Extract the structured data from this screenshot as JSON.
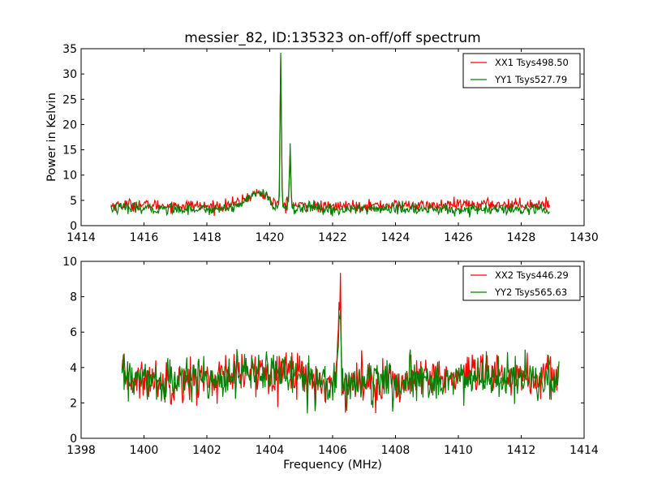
{
  "chart_data": [
    {
      "type": "line",
      "title": "messier_82, ID:135323 on-off/off spectrum",
      "xlabel": "",
      "ylabel": "Power in Kelvin",
      "xlim": [
        1414,
        1430
      ],
      "ylim": [
        0,
        35
      ],
      "xticks": [
        1414,
        1416,
        1418,
        1420,
        1422,
        1424,
        1426,
        1428,
        1430
      ],
      "yticks": [
        0,
        5,
        10,
        15,
        20,
        25,
        30,
        35
      ],
      "legend_position": "top-right",
      "grid": false,
      "series": [
        {
          "name": "XX1 Tsys498.50",
          "color": "#ff0000",
          "x": [
            1414.95,
            1415.5,
            1416.0,
            1416.5,
            1417.0,
            1417.5,
            1418.0,
            1418.5,
            1419.0,
            1419.3,
            1419.6,
            1419.9,
            1420.1,
            1420.3,
            1420.35,
            1420.4,
            1420.5,
            1420.6,
            1420.65,
            1420.7,
            1420.9,
            1421.2,
            1421.6,
            1422.0,
            1422.5,
            1423.0,
            1423.5,
            1424.0,
            1424.5,
            1425.0,
            1425.5,
            1426.0,
            1426.5,
            1427.0,
            1427.5,
            1428.0,
            1428.5,
            1428.9
          ],
          "y": [
            4.0,
            4.2,
            4.1,
            4.0,
            3.9,
            4.1,
            3.8,
            3.9,
            4.6,
            5.6,
            6.5,
            5.8,
            4.6,
            4.5,
            33.0,
            4.3,
            4.0,
            5.5,
            14.5,
            4.0,
            4.0,
            4.0,
            3.7,
            3.8,
            3.9,
            4.0,
            4.0,
            4.1,
            4.0,
            3.9,
            4.0,
            4.1,
            4.2,
            4.3,
            4.2,
            4.3,
            4.2,
            4.2
          ]
        },
        {
          "name": "YY1 Tsys527.79",
          "color": "#008000",
          "x": [
            1414.95,
            1415.5,
            1416.0,
            1416.5,
            1417.0,
            1417.5,
            1418.0,
            1418.5,
            1419.0,
            1419.3,
            1419.6,
            1419.9,
            1420.1,
            1420.3,
            1420.35,
            1420.4,
            1420.5,
            1420.6,
            1420.65,
            1420.7,
            1420.9,
            1421.2,
            1421.6,
            1422.0,
            1422.5,
            1423.0,
            1423.5,
            1424.0,
            1424.5,
            1425.0,
            1425.5,
            1426.0,
            1426.5,
            1427.0,
            1427.5,
            1428.0,
            1428.5,
            1428.9
          ],
          "y": [
            3.4,
            3.4,
            3.3,
            3.3,
            3.3,
            3.4,
            3.2,
            3.4,
            4.0,
            5.4,
            6.6,
            6.0,
            3.8,
            3.5,
            34.2,
            3.6,
            3.4,
            5.0,
            16.3,
            3.4,
            3.4,
            3.6,
            3.3,
            3.1,
            3.2,
            3.3,
            3.4,
            3.3,
            3.3,
            3.2,
            3.2,
            3.2,
            3.2,
            3.1,
            3.1,
            3.0,
            3.0,
            3.0
          ]
        }
      ]
    },
    {
      "type": "line",
      "title": "",
      "xlabel": "Frequency (MHz)",
      "ylabel": "",
      "xlim": [
        1398,
        1414
      ],
      "ylim": [
        0,
        10
      ],
      "xticks": [
        1398,
        1400,
        1402,
        1404,
        1406,
        1408,
        1410,
        1412,
        1414
      ],
      "yticks": [
        0,
        2,
        4,
        6,
        8,
        10
      ],
      "legend_position": "top-right",
      "grid": false,
      "series": [
        {
          "name": "XX2 Tsys446.29",
          "color": "#ff0000",
          "x": [
            1399.3,
            1399.8,
            1400.3,
            1400.8,
            1401.3,
            1401.8,
            1402.3,
            1402.8,
            1403.3,
            1403.8,
            1404.3,
            1404.8,
            1405.3,
            1405.8,
            1406.1,
            1406.25,
            1406.3,
            1406.4,
            1406.8,
            1407.3,
            1407.8,
            1408.3,
            1408.8,
            1409.3,
            1409.8,
            1410.3,
            1410.8,
            1411.3,
            1411.8,
            1412.3,
            1412.8,
            1413.2
          ],
          "y": [
            3.4,
            3.3,
            3.3,
            3.2,
            3.3,
            3.3,
            3.4,
            3.5,
            3.7,
            3.8,
            3.9,
            3.8,
            3.5,
            3.1,
            3.0,
            9.3,
            2.9,
            3.0,
            3.1,
            3.3,
            3.2,
            3.2,
            3.3,
            3.5,
            3.4,
            3.5,
            3.5,
            3.6,
            3.5,
            3.4,
            3.4,
            3.5
          ]
        },
        {
          "name": "YY2 Tsys565.63",
          "color": "#008000",
          "x": [
            1399.3,
            1399.8,
            1400.3,
            1400.8,
            1401.3,
            1401.8,
            1402.3,
            1402.8,
            1403.3,
            1403.8,
            1404.3,
            1404.8,
            1405.3,
            1405.8,
            1406.1,
            1406.25,
            1406.3,
            1406.4,
            1406.8,
            1407.3,
            1407.8,
            1408.3,
            1408.8,
            1409.3,
            1409.8,
            1410.3,
            1410.8,
            1411.3,
            1411.8,
            1412.3,
            1412.8,
            1413.2
          ],
          "y": [
            3.5,
            3.3,
            3.2,
            3.2,
            3.3,
            3.4,
            3.5,
            3.6,
            3.6,
            3.7,
            3.7,
            3.6,
            3.4,
            3.2,
            3.1,
            6.9,
            3.0,
            3.1,
            3.2,
            3.2,
            3.1,
            3.0,
            3.2,
            3.4,
            3.3,
            3.3,
            3.4,
            3.4,
            3.3,
            3.3,
            3.2,
            3.2
          ]
        }
      ]
    }
  ]
}
